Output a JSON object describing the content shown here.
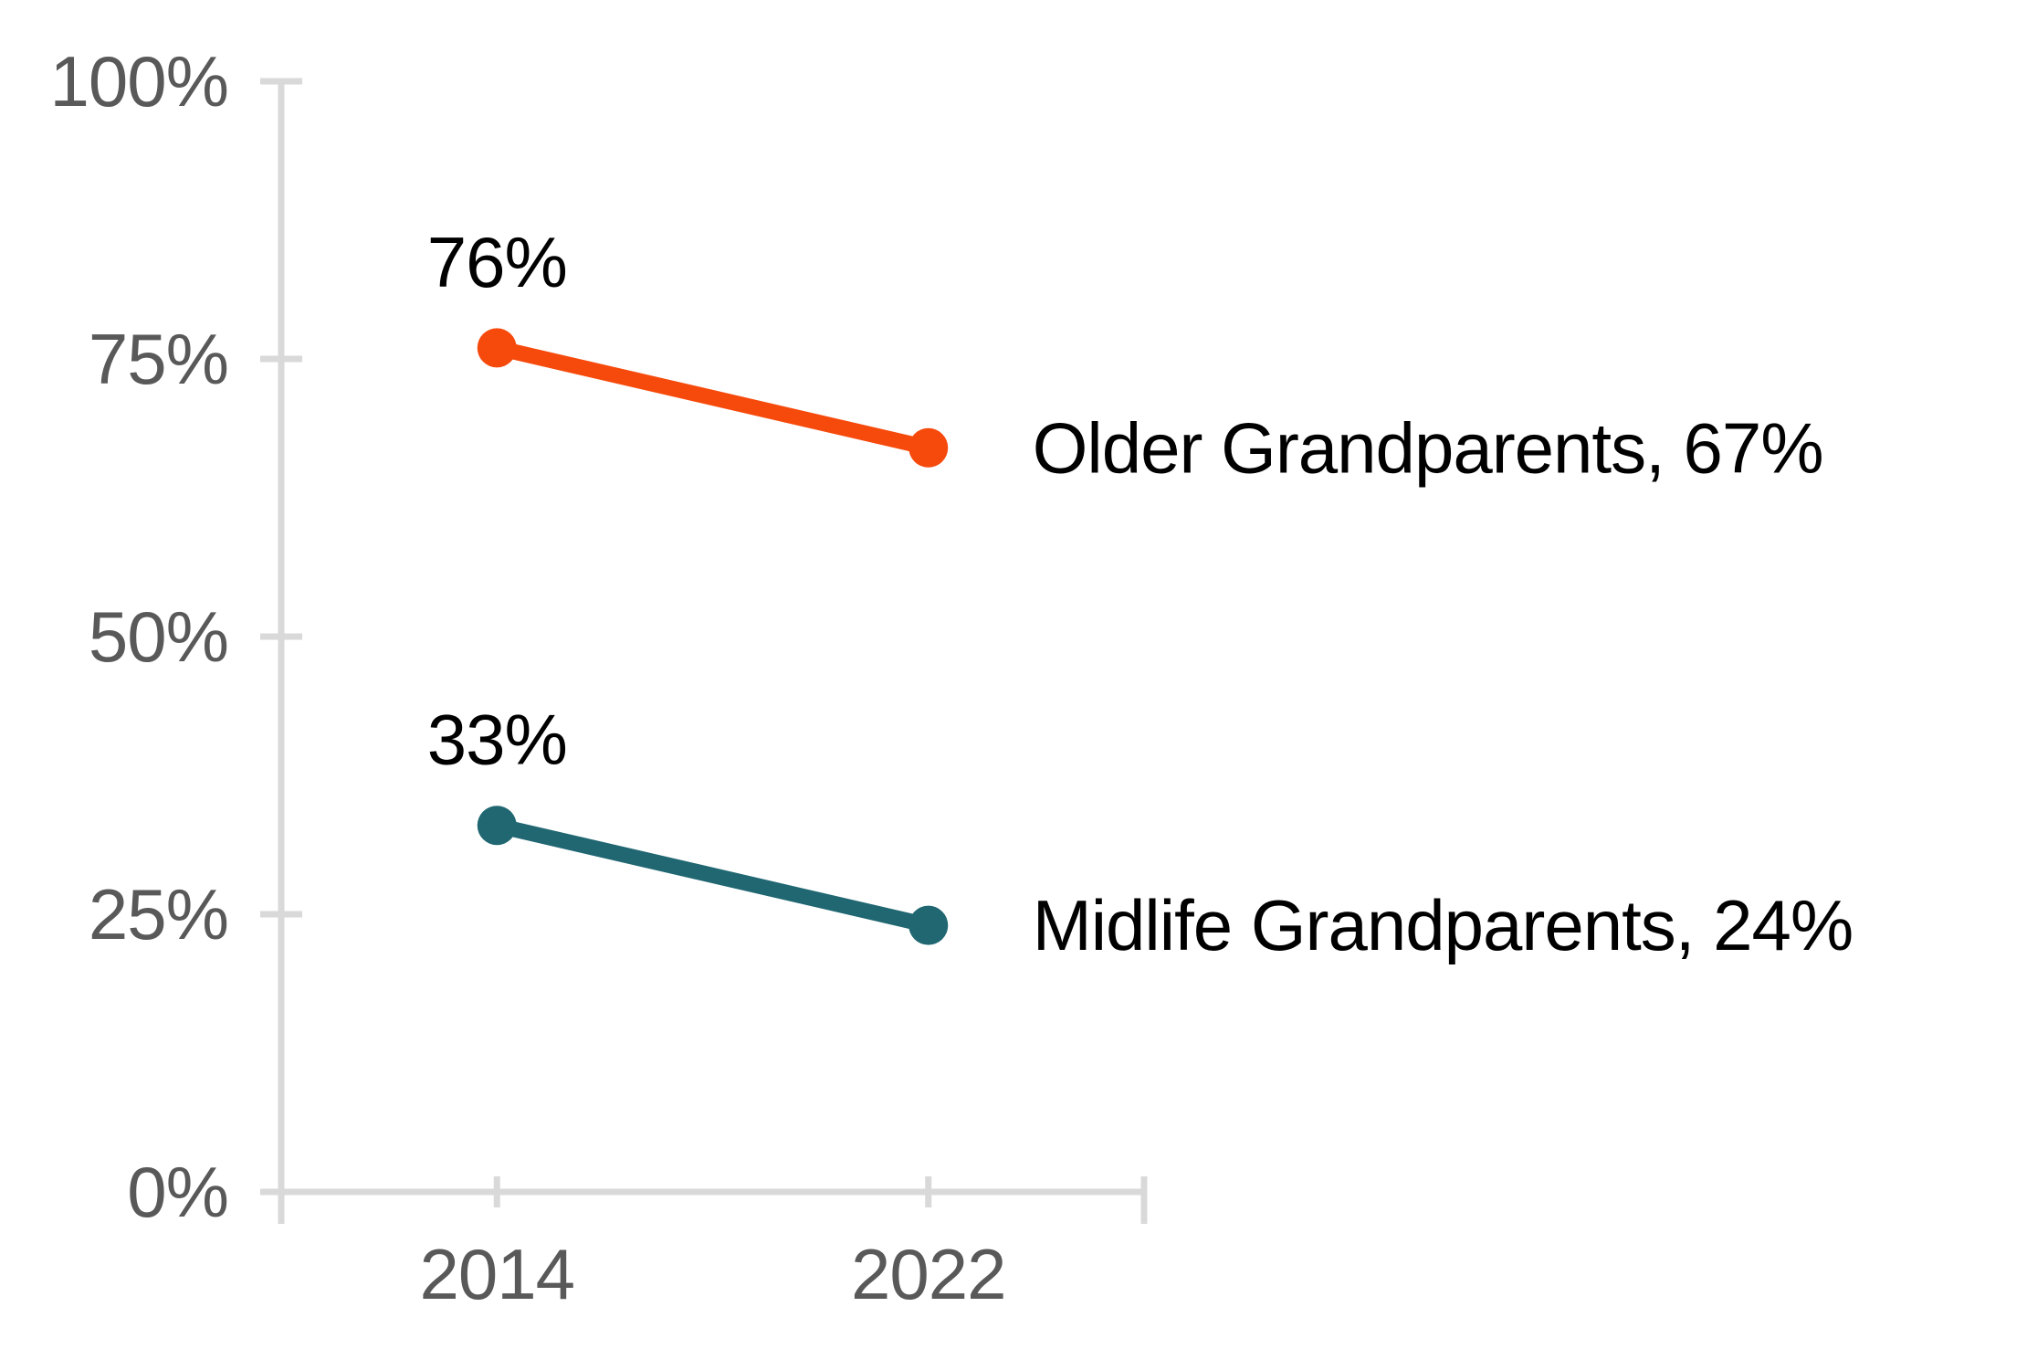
{
  "chart_data": {
    "type": "line",
    "categories": [
      "2014",
      "2022"
    ],
    "series": [
      {
        "name": "Older Grandparents",
        "values": [
          76,
          67
        ],
        "color": "#F64A0C",
        "point_label": "76%",
        "end_label": "Older Grandparents, 67%"
      },
      {
        "name": "Midlife Grandparents",
        "values": [
          33,
          24
        ],
        "color": "#206772",
        "point_label": "33%",
        "end_label": "Midlife Grandparents, 24%"
      }
    ],
    "y_axis": {
      "min": 0,
      "max": 100,
      "ticks": [
        {
          "value": 0,
          "label": "0%"
        },
        {
          "value": 25,
          "label": "25%"
        },
        {
          "value": 50,
          "label": "50%"
        },
        {
          "value": 75,
          "label": "75%"
        },
        {
          "value": 100,
          "label": "100%"
        }
      ]
    },
    "x_axis": {
      "tick_labels": [
        "2014",
        "2022"
      ]
    },
    "grid": false,
    "legend_position": "end-of-line",
    "title": "",
    "colors": {
      "axis": "#D9D9D9",
      "tick_text": "#595959",
      "label_text": "#000000",
      "background": "#FFFFFF"
    }
  }
}
